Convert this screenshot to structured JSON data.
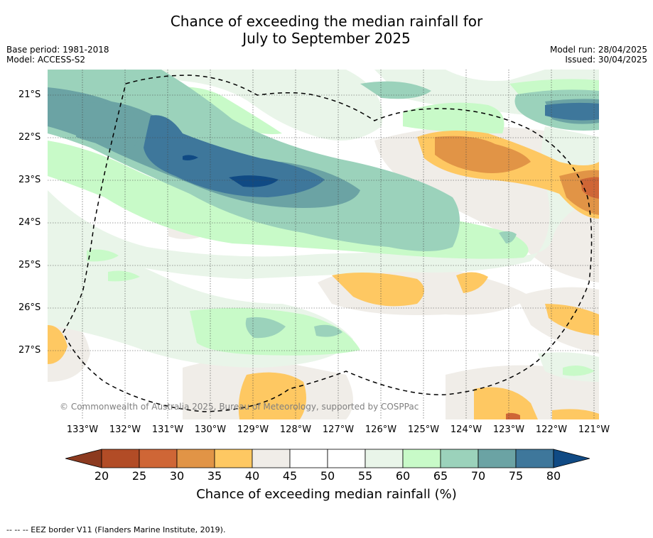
{
  "title": {
    "line1": "Chance of exceeding the median rainfall for",
    "line2": "July to September 2025"
  },
  "meta": {
    "base_period": "Base period: 1981-2018",
    "model": "Model: ACCESS-S2",
    "model_run": "Model run: 28/04/2025",
    "issued": "Issued: 30/04/2025"
  },
  "map": {
    "lat_labels": [
      "21°S",
      "22°S",
      "23°S",
      "24°S",
      "25°S",
      "26°S",
      "27°S"
    ],
    "lon_labels": [
      "133°W",
      "132°W",
      "131°W",
      "130°W",
      "129°W",
      "128°W",
      "127°W",
      "126°W",
      "125°W",
      "124°W",
      "123°W",
      "122°W",
      "121°W"
    ],
    "copyright": "© Commonwealth of Australia 2025, Bureau of Meteorology, supported by COSPPac",
    "border_style": "dashed",
    "border_color": "#000000"
  },
  "colorbar": {
    "ticks": [
      "20",
      "25",
      "30",
      "35",
      "40",
      "45",
      "50",
      "55",
      "60",
      "65",
      "70",
      "75",
      "80"
    ],
    "colors": [
      "#8c3a1f",
      "#b24c26",
      "#cf6636",
      "#e19446",
      "#fec862",
      "#f0ede8",
      "#ffffff",
      "#ffffff",
      "#e9f5e9",
      "#c8fac8",
      "#9bd2bb",
      "#6ba3a4",
      "#3e779b",
      "#104a84"
    ],
    "label": "Chance of exceeding median rainfall (%)"
  },
  "footnote": "--  --  -- EEZ border V11 (Flanders Marine Institute, 2019)."
}
